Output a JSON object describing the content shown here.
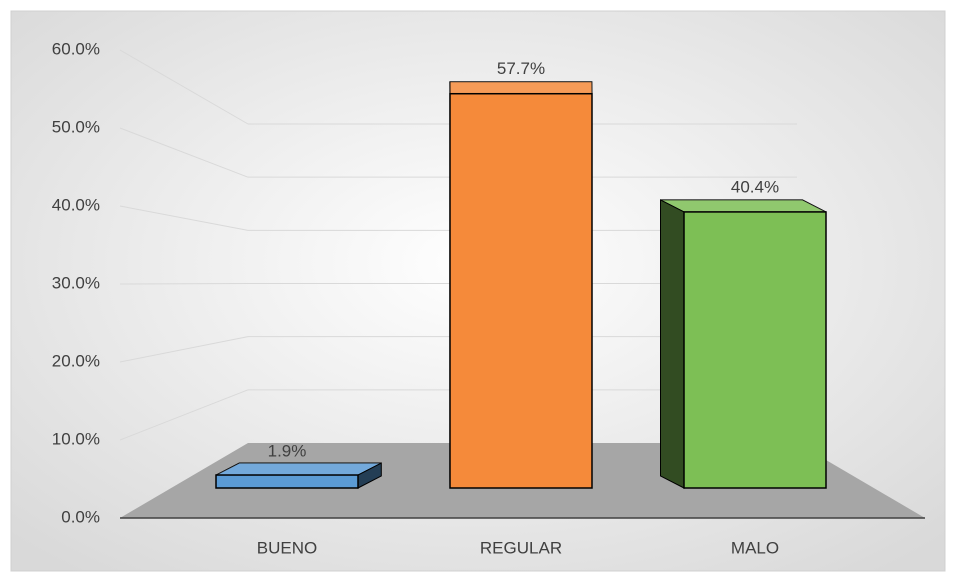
{
  "chart_data": {
    "type": "bar3d",
    "categories": [
      "BUENO",
      "REGULAR",
      "MALO"
    ],
    "values": [
      1.9,
      57.7,
      40.4
    ],
    "value_labels": [
      "1.9%",
      "57.7%",
      "40.4%"
    ],
    "colors": [
      "#5b9bd5",
      "#f58a3a",
      "#7dbf55"
    ],
    "ylim": [
      0,
      60
    ],
    "yticks": [
      {
        "value": 0,
        "label": "0.0%"
      },
      {
        "value": 10,
        "label": "10.0%"
      },
      {
        "value": 20,
        "label": "20.0%"
      },
      {
        "value": 30,
        "label": "30.0%"
      },
      {
        "value": 40,
        "label": "40.0%"
      },
      {
        "value": 50,
        "label": "50.0%"
      },
      {
        "value": 60,
        "label": "60.0%"
      }
    ],
    "grid": true
  }
}
